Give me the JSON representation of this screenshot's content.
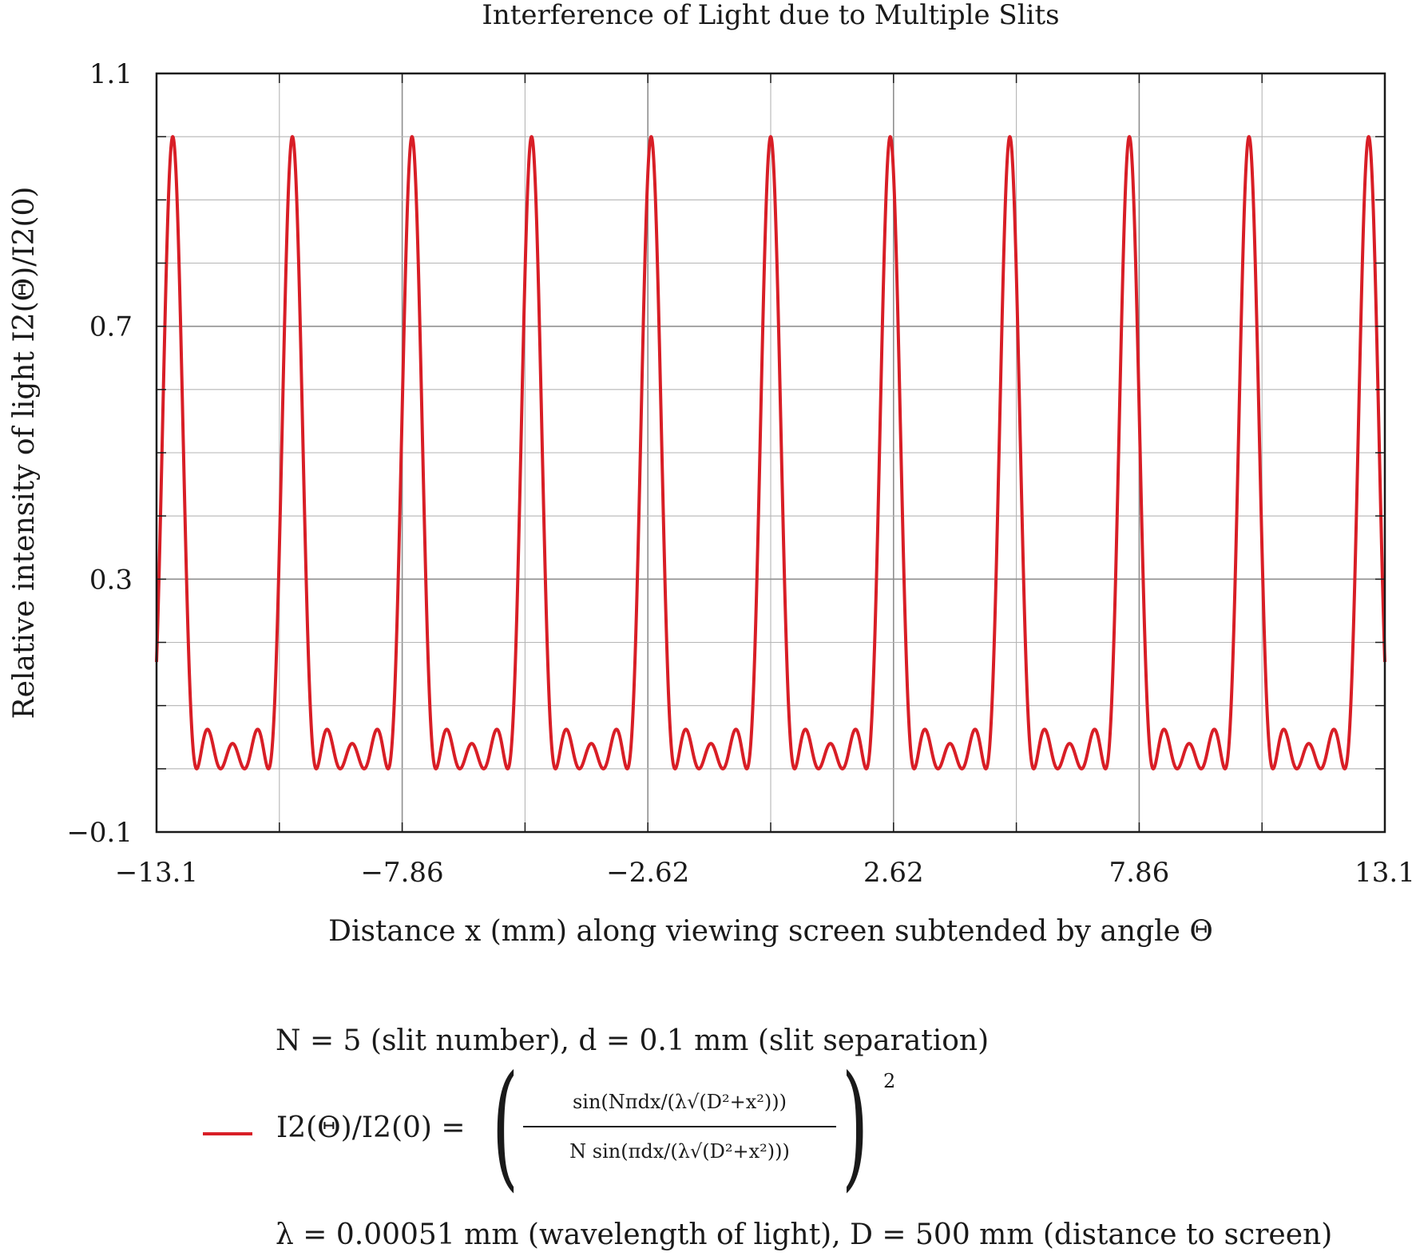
{
  "chart_data": {
    "type": "line",
    "title": "Interference of Light due to Multiple Slits",
    "xlabel": "Distance x (mm) along viewing screen subtended by angle Θ",
    "ylabel": "Relative intensity of light I2(Θ)/I2(0)",
    "xlim": [
      -13.1,
      13.1
    ],
    "ylim": [
      -0.1,
      1.1
    ],
    "x_ticks": [
      "−13.1",
      "−7.86",
      "−2.62",
      "2.62",
      "7.86",
      "13.1"
    ],
    "x_tick_values": [
      -13.1,
      -7.86,
      -2.62,
      2.62,
      7.86,
      13.1
    ],
    "y_ticks": [
      "1.1",
      "0.7",
      "0.3",
      "−0.1"
    ],
    "y_tick_values": [
      1.1,
      0.7,
      0.3,
      -0.1
    ],
    "grid": true,
    "series": [
      {
        "name": "I2(Θ)/I2(0) = ( sin(Nπdx/(λ√(D²+x²))) / (N sin(πdx/(λ√(D²+x²)))) )²",
        "color": "#d81e26",
        "parameters": {
          "N": 5,
          "d_mm": 0.1,
          "lambda_mm": 0.00051,
          "D_mm": 500
        },
        "x_range": [
          -13.1,
          13.1
        ]
      }
    ]
  },
  "legend": {
    "line_a": "N = 5 (slit number), d = 0.1 mm (slit separation)",
    "line_c": "λ = 0.00051 mm (wavelength of light), D = 500 mm (distance to screen)",
    "lhs": "I2(Θ)/I2(0) =",
    "numerator": "sin(Nπdx/(λ√(D²+x²)))",
    "denominator": "N sin(πdx/(λ√(D²+x²)))",
    "exponent": "2"
  }
}
